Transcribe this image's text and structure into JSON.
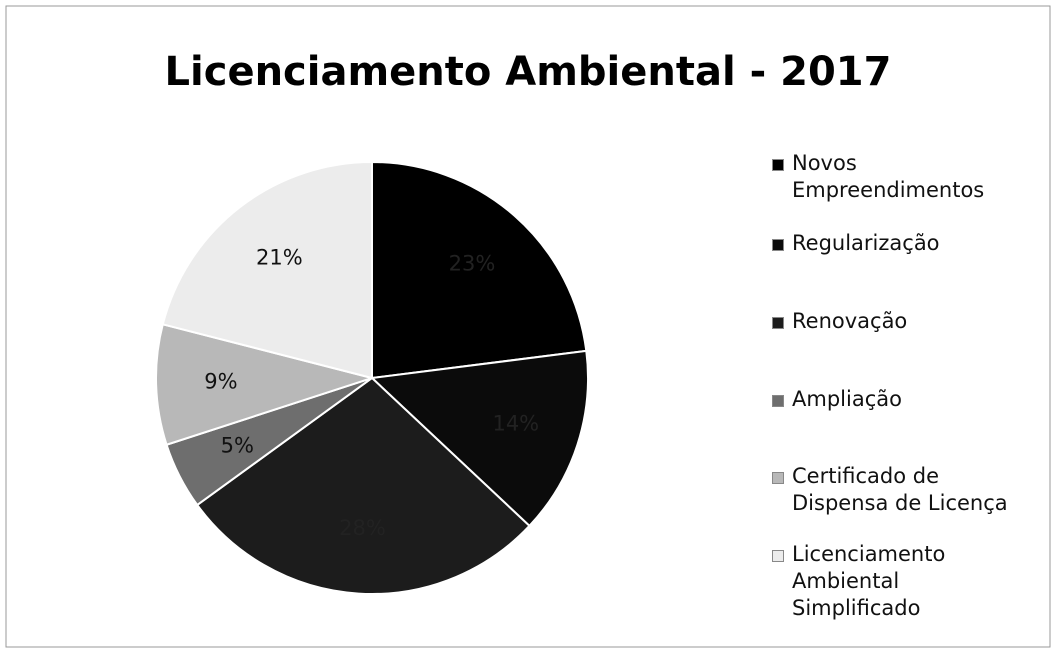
{
  "chart_data": {
    "type": "pie",
    "title": "Licenciamento Ambiental - 2017",
    "categories": [
      "Novos Empreendimentos",
      "Regularização",
      "Renovação",
      "Ampliação",
      "Certificado de Dispensa de Licença",
      "Licenciamento Ambiental Simplificado"
    ],
    "values": [
      23,
      14,
      28,
      5,
      9,
      21
    ],
    "value_labels": [
      "23%",
      "14%",
      "28%",
      "5%",
      "9%",
      "21%"
    ],
    "colors": [
      "#000000",
      "#0b0b0b",
      "#1c1c1c",
      "#6e6e6e",
      "#b8b8b8",
      "#ececec"
    ],
    "legend": "right"
  }
}
